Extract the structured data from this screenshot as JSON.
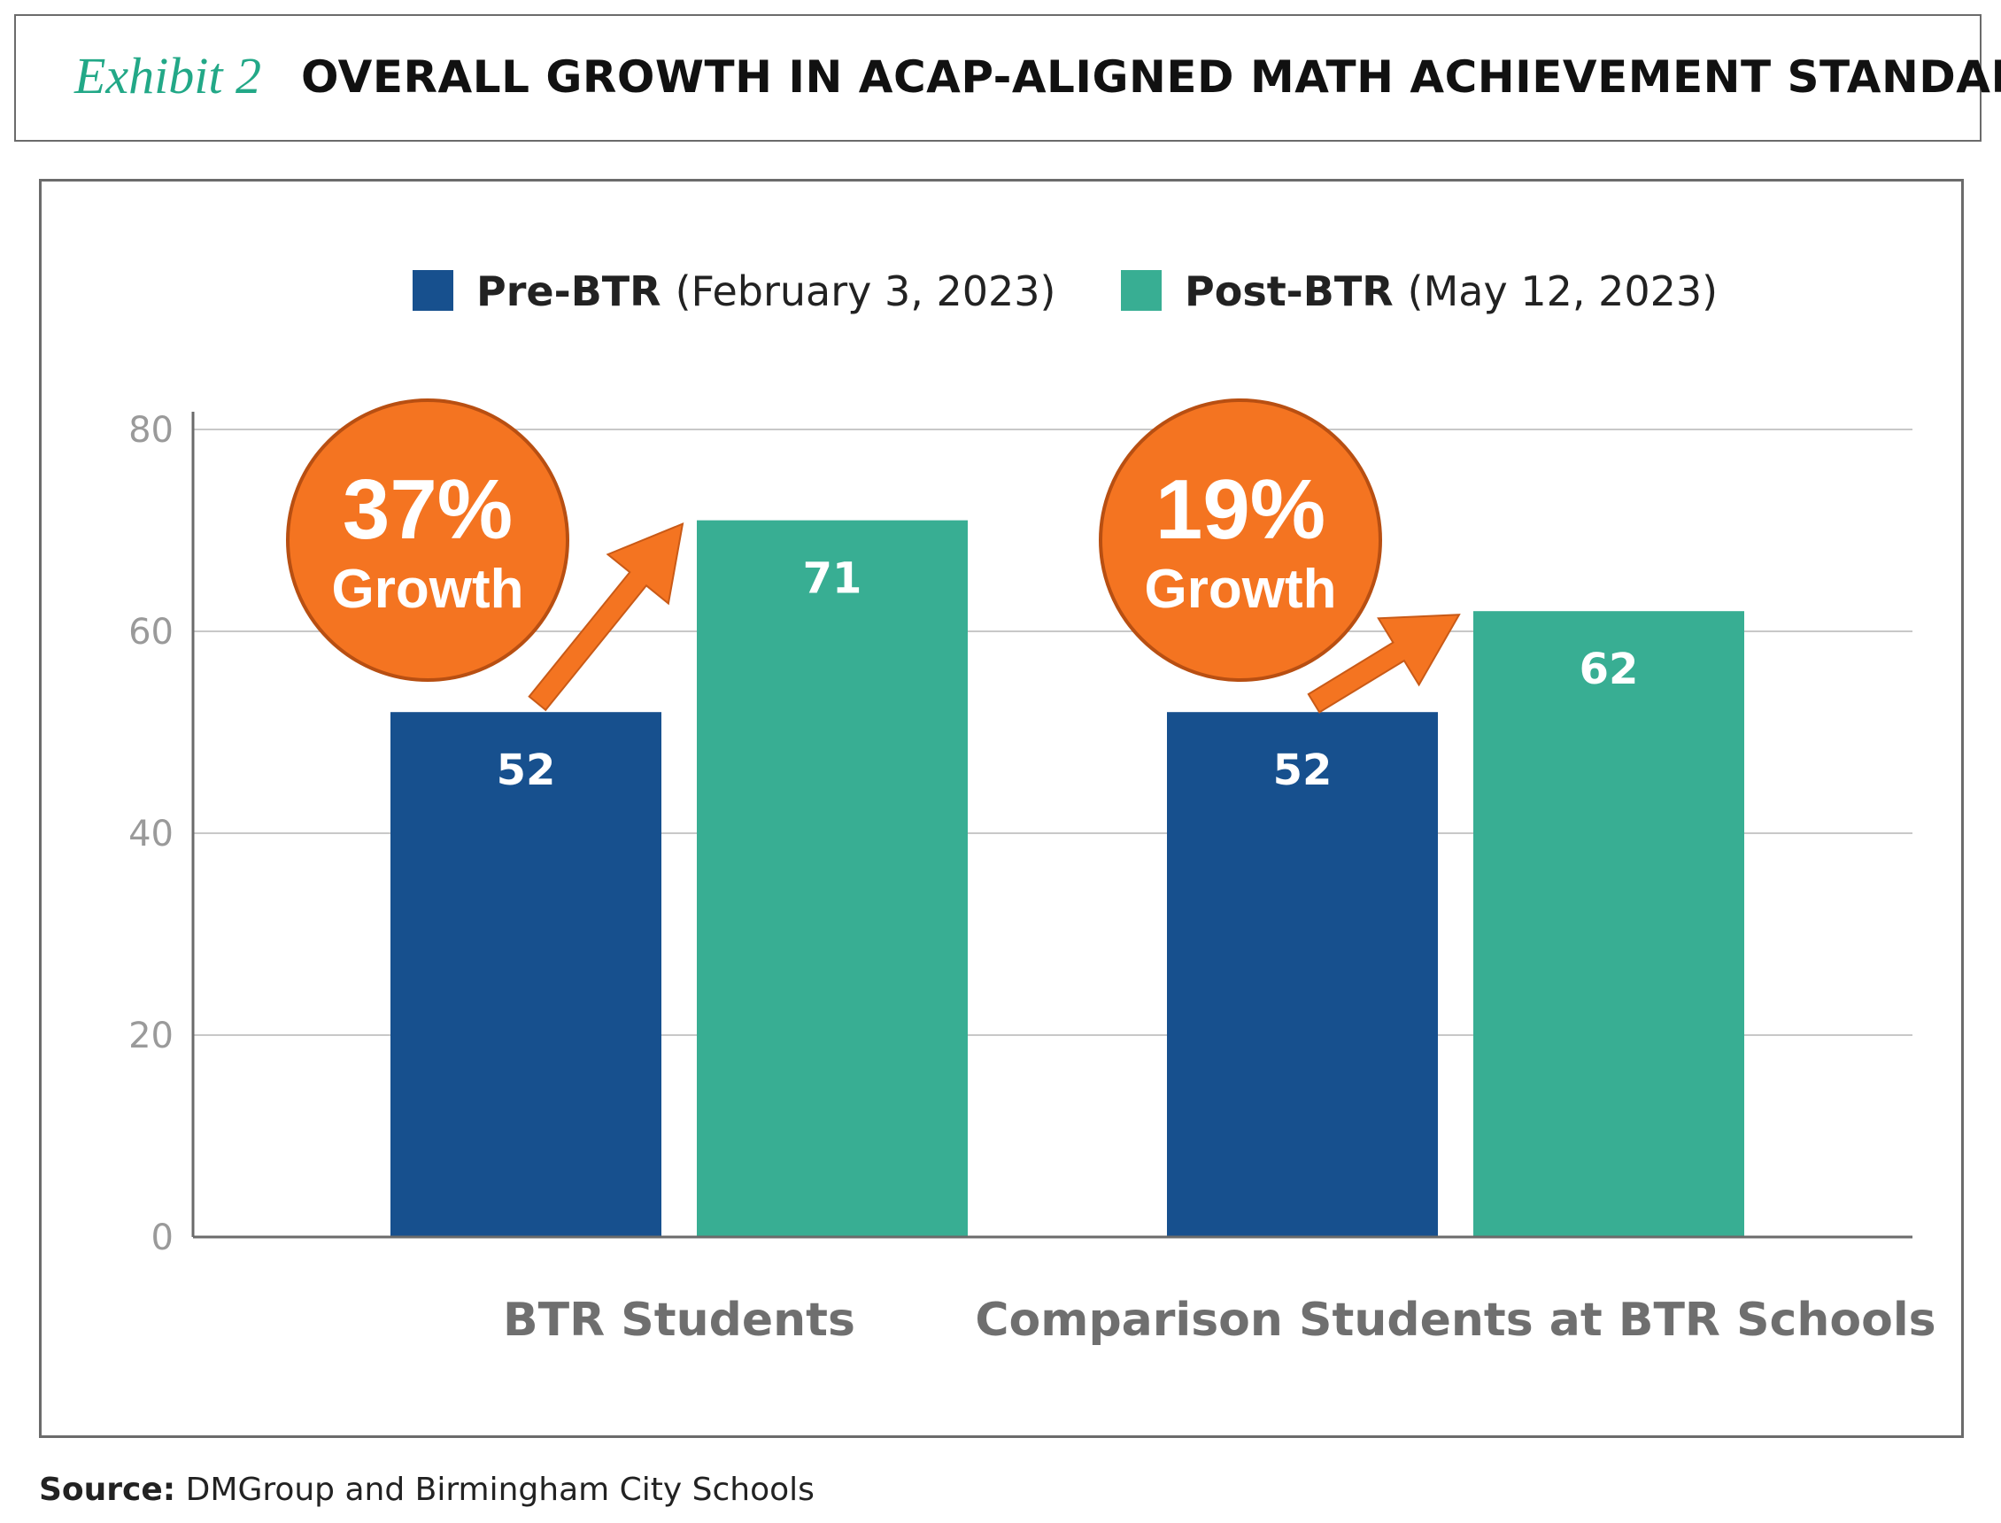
{
  "header": {
    "exhibit_label": "Exhibit 2",
    "title": "OVERALL GROWTH IN ACAP-ALIGNED MATH ACHIEVEMENT STANDARDS"
  },
  "chart_data": {
    "type": "bar",
    "title": "OVERALL GROWTH IN ACAP-ALIGNED MATH ACHIEVEMENT STANDARDS",
    "categories": [
      "BTR Students",
      "Comparison Students at BTR Schools"
    ],
    "series": [
      {
        "name": "Pre-BTR",
        "name_detail": "(February 3, 2023)",
        "values": [
          52,
          52
        ],
        "color": "#17508e"
      },
      {
        "name": "Post-BTR",
        "name_detail": "(May 12, 2023)",
        "values": [
          71,
          62
        ],
        "color": "#38ae93"
      }
    ],
    "ylim": [
      0,
      80
    ],
    "yticks": [
      0,
      20,
      40,
      60,
      80
    ],
    "grid": true,
    "legend_position": "top",
    "annotations": [
      {
        "category": "BTR Students",
        "percent": "37%",
        "label": "Growth"
      },
      {
        "category": "Comparison Students at BTR Schools",
        "percent": "19%",
        "label": "Growth"
      }
    ],
    "annotation_color": "#f47421"
  },
  "source": {
    "label": "Source:",
    "text": "DMGroup and Birmingham City Schools"
  }
}
